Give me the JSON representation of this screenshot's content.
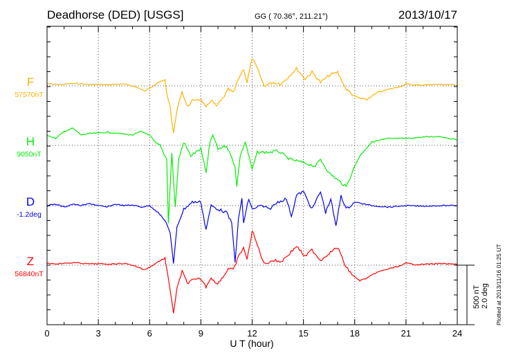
{
  "chart_data": {
    "type": "line",
    "title": "Deadhorse (DED)  [USGS]",
    "coords": "GG ( 70.36°, 211.21°)",
    "date": "2013/10/17",
    "xlabel": "U T (hour)",
    "xlim": [
      0,
      24
    ],
    "xticks": [
      "0",
      "3",
      "6",
      "9",
      "12",
      "15",
      "18",
      "21",
      "24"
    ],
    "grid": true,
    "scale_nT": "500 nT",
    "scale_deg": "2.0 deg",
    "scale_value_nT": 500,
    "scale_value_deg": 2.0,
    "plotted_note": "Plotted at 2013/11/16 01:25 UT",
    "series": [
      {
        "name": "F",
        "baseline": "57570nT",
        "unit": "nT",
        "color": "#ffb000",
        "points": [
          [
            0,
            17
          ],
          [
            0.5,
            12
          ],
          [
            1,
            12
          ],
          [
            1.5,
            20
          ],
          [
            2,
            17
          ],
          [
            2.5,
            10
          ],
          [
            3,
            12
          ],
          [
            3.5,
            8
          ],
          [
            4,
            12
          ],
          [
            4.5,
            15
          ],
          [
            5,
            0
          ],
          [
            5.4,
            -20
          ],
          [
            5.7,
            -46
          ],
          [
            6,
            -17
          ],
          [
            6.5,
            29
          ],
          [
            6.9,
            46
          ],
          [
            7.0,
            -58
          ],
          [
            7.2,
            -174
          ],
          [
            7.4,
            -406
          ],
          [
            7.6,
            -203
          ],
          [
            7.9,
            -46
          ],
          [
            8.2,
            -174
          ],
          [
            8.5,
            -128
          ],
          [
            8.8,
            -110
          ],
          [
            9,
            -116
          ],
          [
            9.3,
            -186
          ],
          [
            9.6,
            -116
          ],
          [
            9.9,
            -174
          ],
          [
            10.3,
            -104
          ],
          [
            10.6,
            -29
          ],
          [
            10.9,
            -58
          ],
          [
            11.2,
            58
          ],
          [
            11.5,
            145
          ],
          [
            11.7,
            29
          ],
          [
            12.0,
            232
          ],
          [
            12.3,
            145
          ],
          [
            12.7,
            0
          ],
          [
            13.2,
            29
          ],
          [
            13.7,
            17
          ],
          [
            14.2,
            87
          ],
          [
            14.6,
            145
          ],
          [
            15.1,
            58
          ],
          [
            15.5,
            116
          ],
          [
            16.0,
            29
          ],
          [
            16.5,
            87
          ],
          [
            17.0,
            116
          ],
          [
            17.5,
            -29
          ],
          [
            18.0,
            -87
          ],
          [
            18.3,
            -104
          ],
          [
            18.7,
            -116
          ],
          [
            19.3,
            -58
          ],
          [
            20,
            -29
          ],
          [
            20.8,
            0
          ],
          [
            21,
            17
          ],
          [
            21.5,
            6
          ],
          [
            22,
            6
          ],
          [
            22.5,
            12
          ],
          [
            23,
            12
          ],
          [
            23.5,
            10
          ],
          [
            24,
            6
          ]
        ]
      },
      {
        "name": "H",
        "baseline": "9050nT",
        "unit": "nT",
        "color": "#00ee00",
        "points": [
          [
            0,
            87
          ],
          [
            0.5,
            58
          ],
          [
            1,
            116
          ],
          [
            1.5,
            145
          ],
          [
            2,
            87
          ],
          [
            2.5,
            100
          ],
          [
            3,
            104
          ],
          [
            3.5,
            110
          ],
          [
            4,
            104
          ],
          [
            4.5,
            95
          ],
          [
            5,
            87
          ],
          [
            5.5,
            116
          ],
          [
            6,
            87
          ],
          [
            6.3,
            29
          ],
          [
            6.6,
            0
          ],
          [
            7.0,
            -116
          ],
          [
            7.1,
            -650
          ],
          [
            7.3,
            -58
          ],
          [
            7.5,
            -522
          ],
          [
            7.7,
            -116
          ],
          [
            8,
            29
          ],
          [
            8.4,
            -87
          ],
          [
            9,
            -29
          ],
          [
            9.3,
            -232
          ],
          [
            9.5,
            0
          ],
          [
            9.7,
            87
          ],
          [
            10,
            -29
          ],
          [
            10.5,
            0
          ],
          [
            11.0,
            -174
          ],
          [
            11.1,
            -348
          ],
          [
            11.3,
            -87
          ],
          [
            11.6,
            29
          ],
          [
            12,
            -203
          ],
          [
            12.3,
            -58
          ],
          [
            13,
            -58
          ],
          [
            13.5,
            -46
          ],
          [
            14.2,
            -116
          ],
          [
            15,
            -145
          ],
          [
            15.7,
            -174
          ],
          [
            16,
            -116
          ],
          [
            16.5,
            -232
          ],
          [
            17,
            -290
          ],
          [
            17.5,
            -348
          ],
          [
            18.0,
            -174
          ],
          [
            18.3,
            -87
          ],
          [
            19,
            29
          ],
          [
            20,
            58
          ],
          [
            21,
            58
          ],
          [
            22,
            70
          ],
          [
            23,
            75
          ],
          [
            24,
            46
          ]
        ]
      },
      {
        "name": "D",
        "baseline": "-1.2deg",
        "unit": "deg",
        "color": "#0000ee",
        "points": [
          [
            0,
            0.0
          ],
          [
            0.5,
            0.05
          ],
          [
            1,
            -0.05
          ],
          [
            1.5,
            0.05
          ],
          [
            2,
            0.0
          ],
          [
            2.5,
            0.07
          ],
          [
            3,
            0.0
          ],
          [
            3.5,
            -0.05
          ],
          [
            4,
            0.05
          ],
          [
            4.5,
            0.0
          ],
          [
            5,
            0.02
          ],
          [
            5.5,
            -0.05
          ],
          [
            6,
            0.0
          ],
          [
            6.5,
            -0.23
          ],
          [
            7,
            -0.58
          ],
          [
            7.2,
            -0.93
          ],
          [
            7.4,
            -1.98
          ],
          [
            7.6,
            -0.7
          ],
          [
            8,
            -0.12
          ],
          [
            8.5,
            0.12
          ],
          [
            9,
            0.12
          ],
          [
            9.3,
            -0.81
          ],
          [
            9.6,
            0.0
          ],
          [
            10,
            -0.12
          ],
          [
            10.5,
            -0.23
          ],
          [
            10.8,
            -0.58
          ],
          [
            11,
            -1.86
          ],
          [
            11.2,
            -0.47
          ],
          [
            11.4,
            0.23
          ],
          [
            11.5,
            -0.58
          ],
          [
            11.8,
            0.23
          ],
          [
            12,
            -0.12
          ],
          [
            12.5,
            0.0
          ],
          [
            13,
            -0.12
          ],
          [
            13.5,
            0.12
          ],
          [
            14,
            0.23
          ],
          [
            14.3,
            -0.35
          ],
          [
            14.6,
            0.35
          ],
          [
            15,
            0.47
          ],
          [
            15.5,
            -0.12
          ],
          [
            16,
            0.47
          ],
          [
            16.3,
            -0.23
          ],
          [
            16.6,
            0.23
          ],
          [
            16.9,
            -0.7
          ],
          [
            17.2,
            0.35
          ],
          [
            17.5,
            -0.12
          ],
          [
            18,
            0.12
          ],
          [
            19,
            0.0
          ],
          [
            20,
            -0.05
          ],
          [
            21,
            0.0
          ],
          [
            22,
            -0.02
          ],
          [
            23,
            0.0
          ],
          [
            24,
            0.0
          ]
        ]
      },
      {
        "name": "Z",
        "baseline": "56840nT",
        "unit": "nT",
        "color": "#ff0000",
        "points": [
          [
            0,
            17
          ],
          [
            0.5,
            12
          ],
          [
            1,
            15
          ],
          [
            1.5,
            20
          ],
          [
            2,
            17
          ],
          [
            2.5,
            10
          ],
          [
            3,
            12
          ],
          [
            3.5,
            8
          ],
          [
            4,
            12
          ],
          [
            4.5,
            15
          ],
          [
            5,
            0
          ],
          [
            5.4,
            -20
          ],
          [
            5.7,
            -40
          ],
          [
            6,
            -17
          ],
          [
            6.5,
            29
          ],
          [
            6.9,
            58
          ],
          [
            7.0,
            -40
          ],
          [
            7.2,
            -200
          ],
          [
            7.4,
            -400
          ],
          [
            7.6,
            -200
          ],
          [
            7.9,
            -50
          ],
          [
            8.2,
            -150
          ],
          [
            8.5,
            -128
          ],
          [
            9,
            -116
          ],
          [
            9.3,
            -180
          ],
          [
            9.6,
            -100
          ],
          [
            9.9,
            -160
          ],
          [
            10.3,
            -100
          ],
          [
            10.6,
            -29
          ],
          [
            10.9,
            -40
          ],
          [
            11.2,
            70
          ],
          [
            11.5,
            150
          ],
          [
            11.7,
            40
          ],
          [
            12.0,
            290
          ],
          [
            12.3,
            170
          ],
          [
            12.7,
            10
          ],
          [
            13.2,
            40
          ],
          [
            13.7,
            30
          ],
          [
            14.2,
            100
          ],
          [
            14.6,
            160
          ],
          [
            15.1,
            70
          ],
          [
            15.5,
            130
          ],
          [
            16.0,
            40
          ],
          [
            16.5,
            100
          ],
          [
            17.0,
            150
          ],
          [
            17.5,
            -20
          ],
          [
            18.0,
            -100
          ],
          [
            18.3,
            -130
          ],
          [
            18.7,
            -110
          ],
          [
            19.3,
            -60
          ],
          [
            20,
            -30
          ],
          [
            20.8,
            0
          ],
          [
            21,
            17
          ],
          [
            21.5,
            6
          ],
          [
            22,
            6
          ],
          [
            22.5,
            12
          ],
          [
            23,
            12
          ],
          [
            23.5,
            10
          ],
          [
            24,
            6
          ]
        ]
      }
    ]
  }
}
